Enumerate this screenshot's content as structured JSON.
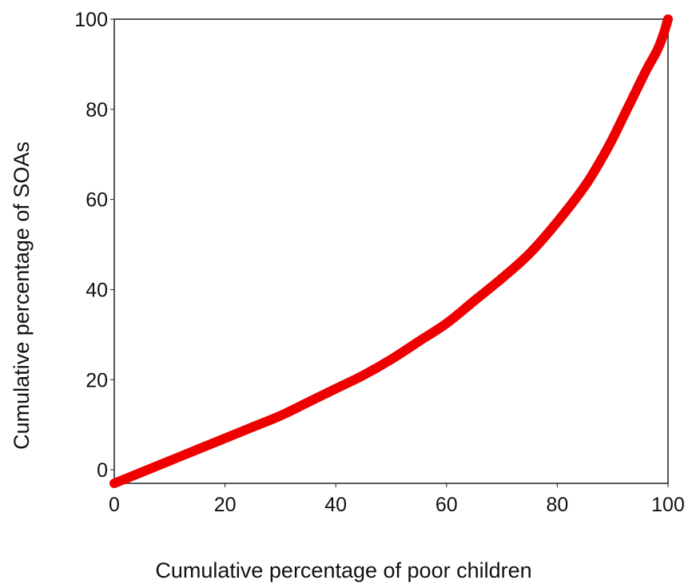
{
  "chart_data": {
    "type": "line",
    "title": "",
    "xlabel": "Cumulative percentage of poor children",
    "ylabel": "Cumulative percentage of SOAs",
    "xlim": [
      0,
      100
    ],
    "ylim": [
      -3,
      100
    ],
    "xticks": [
      0,
      20,
      40,
      60,
      80,
      100
    ],
    "yticks": [
      0,
      20,
      40,
      60,
      80,
      100
    ],
    "grid": false,
    "legend": "none",
    "series": [
      {
        "color": "#ee0000",
        "x": [
          0,
          5,
          10,
          15,
          20,
          25,
          30,
          35,
          40,
          45,
          50,
          55,
          60,
          65,
          70,
          75,
          80,
          85,
          88,
          90,
          92,
          94,
          96,
          98,
          99,
          100
        ],
        "y": [
          -3,
          -0.5,
          2,
          4.5,
          7,
          9.5,
          12,
          15,
          18,
          21,
          24.5,
          28.5,
          32.5,
          37.5,
          42.5,
          48,
          55,
          63,
          69,
          73.5,
          78.5,
          83.5,
          88.5,
          93,
          96,
          100
        ]
      }
    ]
  }
}
